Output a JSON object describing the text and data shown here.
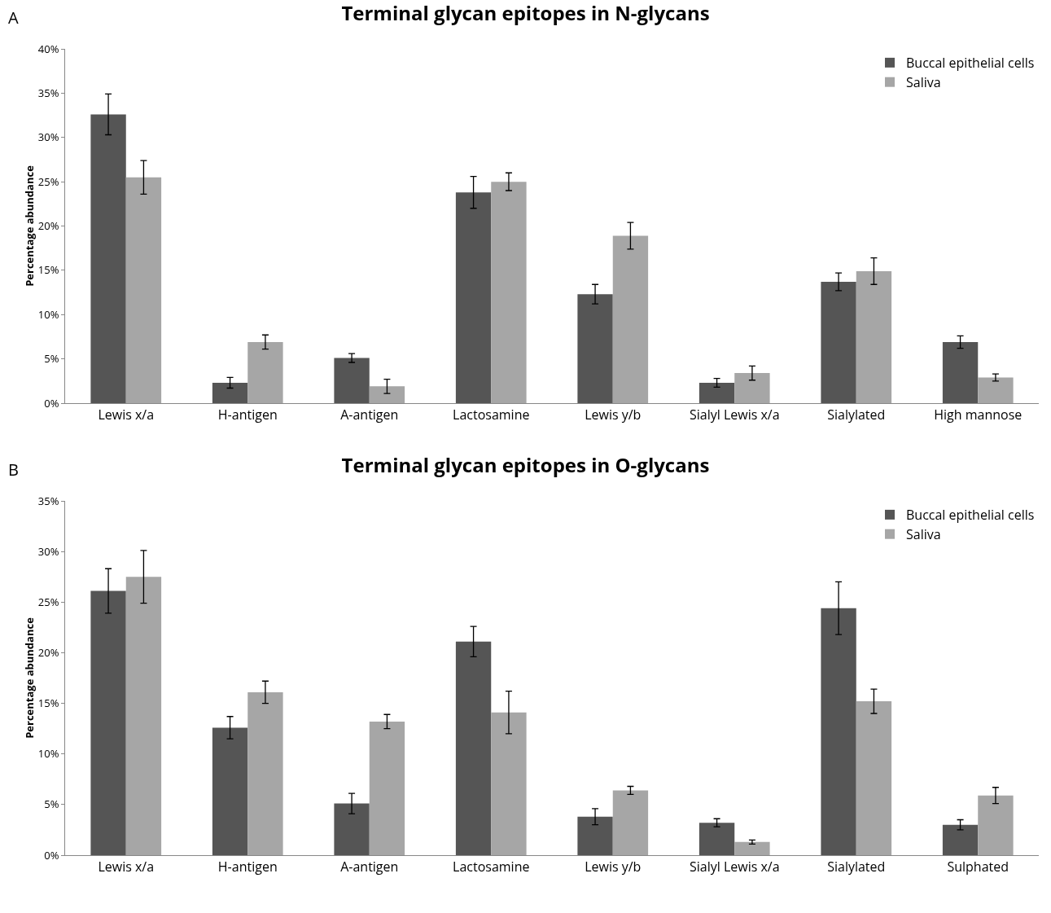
{
  "chart_data": [
    {
      "type": "bar",
      "title": "Terminal glycan epitopes in N-glycans",
      "ylabel": "Percentage abundance",
      "annotations": [
        "A"
      ],
      "categories": [
        "Lewis x/a",
        "H-antigen",
        "A-antigen",
        "Lactosamine",
        "Lewis y/b",
        "Sialyl Lewis x/a",
        "Sialylated",
        "High mannose"
      ],
      "series": [
        {
          "name": "Buccal epithelial cells",
          "color": "#555555",
          "values": [
            32.6,
            2.3,
            5.1,
            23.8,
            12.3,
            2.3,
            13.7,
            6.9
          ],
          "errors": [
            2.3,
            0.6,
            0.5,
            1.8,
            1.1,
            0.5,
            1.0,
            0.7
          ]
        },
        {
          "name": "Saliva",
          "color": "#a6a6a6",
          "values": [
            25.5,
            6.9,
            1.9,
            25.0,
            18.9,
            3.4,
            14.9,
            2.9
          ],
          "errors": [
            1.9,
            0.8,
            0.8,
            1.0,
            1.5,
            0.8,
            1.5,
            0.4
          ]
        }
      ],
      "ylim": [
        0,
        40
      ],
      "yticks": [
        {
          "value": 0,
          "label": "0%"
        },
        {
          "value": 5,
          "label": "5%"
        },
        {
          "value": 10,
          "label": "10%"
        },
        {
          "value": 15,
          "label": "15%"
        },
        {
          "value": 20,
          "label": "20%"
        },
        {
          "value": 25,
          "label": "25%"
        },
        {
          "value": 30,
          "label": "30%"
        },
        {
          "value": 35,
          "label": "35%"
        },
        {
          "value": 40,
          "label": "40%"
        }
      ],
      "grid": false,
      "legend": "top right"
    },
    {
      "type": "bar",
      "title": "Terminal glycan epitopes in O-glycans",
      "ylabel": "Percentage abundance",
      "annotations": [
        "B"
      ],
      "categories": [
        "Lewis x/a",
        "H-antigen",
        "A-antigen",
        "Lactosamine",
        "Lewis y/b",
        "Sialyl Lewis x/a",
        "Sialylated",
        "Sulphated"
      ],
      "series": [
        {
          "name": "Buccal epithelial cells",
          "color": "#555555",
          "values": [
            26.1,
            12.6,
            5.1,
            21.1,
            3.8,
            3.2,
            24.4,
            3.0
          ],
          "errors": [
            2.2,
            1.1,
            1.0,
            1.5,
            0.8,
            0.4,
            2.6,
            0.5
          ]
        },
        {
          "name": "Saliva",
          "color": "#a6a6a6",
          "values": [
            27.5,
            16.1,
            13.2,
            14.1,
            6.4,
            1.3,
            15.2,
            5.9
          ],
          "errors": [
            2.6,
            1.1,
            0.7,
            2.1,
            0.4,
            0.2,
            1.2,
            0.8
          ]
        }
      ],
      "ylim": [
        0,
        35
      ],
      "yticks": [
        {
          "value": 0,
          "label": "0%"
        },
        {
          "value": 5,
          "label": "5%"
        },
        {
          "value": 10,
          "label": "10%"
        },
        {
          "value": 15,
          "label": "15%"
        },
        {
          "value": 20,
          "label": "20%"
        },
        {
          "value": 25,
          "label": "25%"
        },
        {
          "value": 30,
          "label": "30%"
        },
        {
          "value": 35,
          "label": "35%"
        }
      ],
      "grid": false,
      "legend": "top right"
    }
  ]
}
